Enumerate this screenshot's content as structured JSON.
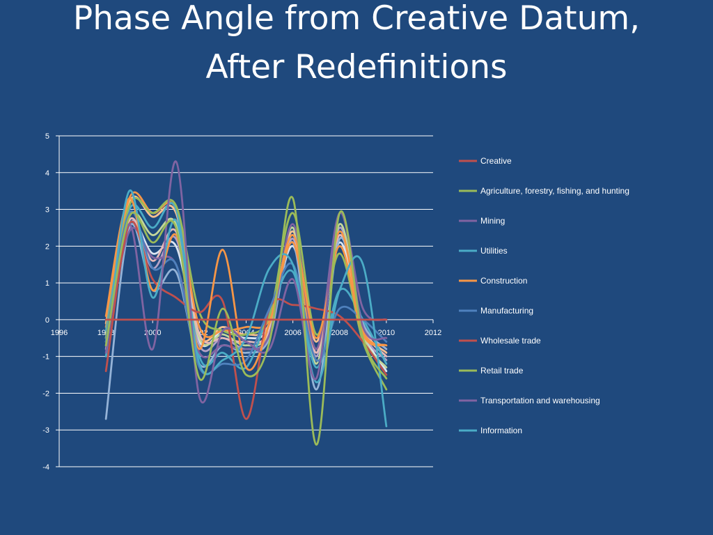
{
  "title": {
    "line1": "Phase Angle from Creative Datum,",
    "line2": "After Redefinitions"
  },
  "chart_data": {
    "type": "line",
    "title": "Phase Angle from Creative Datum, After Redefinitions",
    "xlabel": "",
    "ylabel": "",
    "xlim": [
      1996,
      2012
    ],
    "ylim": [
      -4,
      5
    ],
    "x_ticks": [
      1996,
      1998,
      2000,
      2002,
      2004,
      2006,
      2008,
      2010,
      2012
    ],
    "y_ticks": [
      -4,
      -3,
      -2,
      -1,
      0,
      1,
      2,
      3,
      4,
      5
    ],
    "grid": "horizontal",
    "legend_position": "right",
    "x": [
      1998,
      1999,
      2000,
      2001,
      2002,
      2003,
      2004,
      2005,
      2006,
      2007,
      2008,
      2009,
      2010
    ],
    "series": [
      {
        "name": "Creative",
        "color": "#c0504d",
        "values": [
          0,
          0,
          0,
          0,
          0,
          0,
          0,
          0,
          0,
          0,
          0,
          0,
          0
        ]
      },
      {
        "name": "Agriculture, forestry, fishing, and hunting",
        "color": "#9bbb59",
        "values": [
          -0.7,
          2.8,
          2.1,
          2.5,
          -1.6,
          0.3,
          -1.5,
          -0.6,
          3.3,
          -3.4,
          2.9,
          -0.5,
          -1.6
        ]
      },
      {
        "name": "Mining",
        "color": "#8064a2",
        "values": [
          -0.9,
          2.6,
          -0.8,
          4.3,
          -2.1,
          -0.3,
          -0.6,
          -0.8,
          1.1,
          -1.6,
          2.9,
          -0.2,
          -0.5
        ]
      },
      {
        "name": "Utilities",
        "color": "#4bacc6",
        "values": [
          -1.0,
          3.5,
          0.6,
          2.7,
          -1.2,
          -1.1,
          -0.5,
          1.4,
          1.5,
          -1.7,
          0.8,
          1.5,
          -2.9
        ]
      },
      {
        "name": "Construction",
        "color": "#f79646",
        "values": [
          0.1,
          3.3,
          0.8,
          2.3,
          -0.8,
          1.9,
          -1.3,
          -0.1,
          2.3,
          -0.5,
          2.0,
          -0.4,
          -0.7
        ]
      },
      {
        "name": "Manufacturing",
        "color": "#4f81bd",
        "values": [
          -0.6,
          2.9,
          1.4,
          1.5,
          -1.3,
          -1.2,
          -1.1,
          0.3,
          1.5,
          -1.1,
          0.3,
          0.0,
          -0.6
        ]
      },
      {
        "name": "Wholesale trade",
        "color": "#c0504d",
        "values": [
          -1.4,
          2.6,
          1.1,
          0.6,
          0.2,
          0.5,
          -2.7,
          0.3,
          0.4,
          0.3,
          0.1,
          -0.6,
          -1.5
        ]
      },
      {
        "name": "Retail trade",
        "color": "#9bbb59",
        "values": [
          -0.5,
          3.1,
          2.9,
          3.1,
          0.2,
          -0.3,
          -0.4,
          0.1,
          2.9,
          -0.4,
          1.8,
          -0.6,
          -1.9
        ]
      },
      {
        "name": "Transportation and warehousing",
        "color": "#8064a2",
        "values": [
          -0.7,
          2.4,
          1.7,
          1.5,
          -0.9,
          -0.7,
          -0.8,
          -0.4,
          2.6,
          -0.8,
          2.9,
          0.3,
          0.0
        ]
      },
      {
        "name": "Information",
        "color": "#4bacc6",
        "values": [
          -0.3,
          3.0,
          2.5,
          3.0,
          -1.0,
          -0.9,
          -1.3,
          0.2,
          1.3,
          -1.3,
          0.8,
          0.0,
          -1.2
        ]
      },
      {
        "name": "",
        "color": "#f79646",
        "values": [
          -0.2,
          3.3,
          2.9,
          3.0,
          -0.2,
          -0.3,
          -0.2,
          0.0,
          2.1,
          -0.8,
          2.4,
          -0.3,
          -0.7
        ]
      },
      {
        "name": "",
        "color": "#95b3d7",
        "values": [
          -2.7,
          2.5,
          0.8,
          1.3,
          -1.2,
          -0.7,
          -0.9,
          -0.5,
          2.1,
          -1.9,
          2.2,
          -0.1,
          -0.8
        ]
      },
      {
        "name": "",
        "color": "#e6b9b8",
        "values": [
          -0.6,
          2.7,
          1.6,
          2.4,
          -0.4,
          -0.5,
          -0.6,
          -0.3,
          2.3,
          -0.9,
          2.3,
          -0.2,
          -1.0
        ]
      },
      {
        "name": "",
        "color": "#c3d69b",
        "values": [
          -0.4,
          2.8,
          2.3,
          2.6,
          -0.5,
          -0.4,
          -0.7,
          -0.3,
          2.5,
          -1.2,
          2.6,
          -0.4,
          -1.3
        ]
      },
      {
        "name": "",
        "color": "#b3a2c7",
        "values": [
          -0.8,
          2.7,
          1.4,
          2.2,
          -0.7,
          -0.5,
          -0.8,
          -0.4,
          2.2,
          -1.0,
          2.5,
          -0.3,
          -1.1
        ]
      },
      {
        "name": "",
        "color": "#fac090",
        "values": [
          -0.1,
          3.2,
          2.8,
          2.9,
          -0.4,
          -0.2,
          -0.4,
          -0.1,
          2.4,
          -0.6,
          2.3,
          -0.2,
          -0.9
        ]
      },
      {
        "name": "",
        "color": "#dbe5f1",
        "values": [
          -0.5,
          2.6,
          1.8,
          2.0,
          -0.6,
          -0.3,
          -0.5,
          -0.2,
          2.0,
          -0.8,
          2.1,
          -0.3,
          -1.4
        ]
      }
    ]
  }
}
